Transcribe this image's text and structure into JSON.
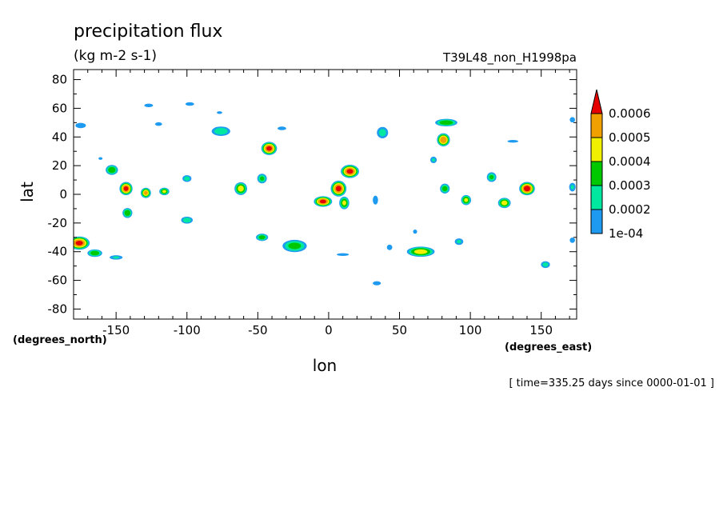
{
  "chart_data": {
    "type": "heatmap",
    "title": "precipitation flux",
    "units": "(kg m-2 s-1)",
    "run_label": "T39L48_non_H1998pa",
    "xlabel": "lon",
    "ylabel": "lat",
    "x_unit_label": "(degrees_east)",
    "y_unit_label": "(degrees_north)",
    "time_label": "[ time=335.25 days since 0000-01-01 ]",
    "xlim": [
      -180,
      175
    ],
    "ylim": [
      -87,
      87
    ],
    "x_ticks": [
      -150,
      -100,
      -50,
      0,
      50,
      100,
      150
    ],
    "x_tick_labels": [
      "-150",
      "-100",
      "-50",
      "0",
      "50",
      "100",
      "150"
    ],
    "y_ticks": [
      80,
      60,
      40,
      20,
      0,
      -20,
      -40,
      -60,
      -80
    ],
    "y_tick_labels": [
      "80",
      "60",
      "40",
      "20",
      "0",
      "-20",
      "-40",
      "-60",
      "-80"
    ],
    "levels": [
      0.0001,
      0.0002,
      0.0003,
      0.0004,
      0.0005,
      0.0006
    ],
    "colorbar": {
      "labels": [
        "1e-04",
        "0.0002",
        "0.0003",
        "0.0004",
        "0.0005",
        "0.0006"
      ],
      "colors": [
        "#1e9bf0",
        "#00e8a0",
        "#00c800",
        "#f0f000",
        "#f0a000",
        "#e60000"
      ]
    },
    "features": [
      {
        "lon": -175,
        "lat": 48,
        "peak": 0.00015,
        "rx": 6,
        "ry": 3
      },
      {
        "lon": -153,
        "lat": 17,
        "peak": 0.00038,
        "rx": 5,
        "ry": 4
      },
      {
        "lon": -161,
        "lat": 25,
        "peak": 0.00012,
        "rx": 3,
        "ry": 2
      },
      {
        "lon": -143,
        "lat": 4,
        "peak": 0.00062,
        "rx": 5,
        "ry": 5
      },
      {
        "lon": -142,
        "lat": -13,
        "peak": 0.00038,
        "rx": 4,
        "ry": 4
      },
      {
        "lon": -129,
        "lat": 1,
        "peak": 0.00052,
        "rx": 4,
        "ry": 4
      },
      {
        "lon": -116,
        "lat": 2,
        "peak": 0.00042,
        "rx": 4,
        "ry": 3
      },
      {
        "lon": -176,
        "lat": -34,
        "peak": 0.00062,
        "rx": 8,
        "ry": 5
      },
      {
        "lon": -165,
        "lat": -41,
        "peak": 0.00038,
        "rx": 6,
        "ry": 3
      },
      {
        "lon": -150,
        "lat": -44,
        "peak": 0.00022,
        "rx": 6,
        "ry": 2
      },
      {
        "lon": -120,
        "lat": 49,
        "peak": 0.00015,
        "rx": 4,
        "ry": 2
      },
      {
        "lon": -100,
        "lat": 11,
        "peak": 0.00025,
        "rx": 4,
        "ry": 3
      },
      {
        "lon": -100,
        "lat": -18,
        "peak": 0.00028,
        "rx": 5,
        "ry": 3
      },
      {
        "lon": -98,
        "lat": 63,
        "peak": 0.00015,
        "rx": 5,
        "ry": 2
      },
      {
        "lon": -76,
        "lat": 44,
        "peak": 0.00028,
        "rx": 8,
        "ry": 4
      },
      {
        "lon": -77,
        "lat": 57,
        "peak": 0.00012,
        "rx": 4,
        "ry": 2
      },
      {
        "lon": -62,
        "lat": 4,
        "peak": 0.00045,
        "rx": 5,
        "ry": 5
      },
      {
        "lon": -47,
        "lat": 11,
        "peak": 0.00032,
        "rx": 4,
        "ry": 4
      },
      {
        "lon": -42,
        "lat": 32,
        "peak": 0.00062,
        "rx": 6,
        "ry": 5
      },
      {
        "lon": -33,
        "lat": 46,
        "peak": 0.00015,
        "rx": 5,
        "ry": 2
      },
      {
        "lon": -47,
        "lat": -30,
        "peak": 0.00035,
        "rx": 5,
        "ry": 3
      },
      {
        "lon": -24,
        "lat": -36,
        "peak": 0.00035,
        "rx": 10,
        "ry": 5
      },
      {
        "lon": -4,
        "lat": -5,
        "peak": 0.00062,
        "rx": 7,
        "ry": 4
      },
      {
        "lon": 7,
        "lat": 4,
        "peak": 0.00062,
        "rx": 6,
        "ry": 6
      },
      {
        "lon": 15,
        "lat": 16,
        "peak": 0.00062,
        "rx": 7,
        "ry": 5
      },
      {
        "lon": 11,
        "lat": -6,
        "peak": 0.00042,
        "rx": 4,
        "ry": 5
      },
      {
        "lon": 10,
        "lat": -42,
        "peak": 0.00012,
        "rx": 9,
        "ry": 2
      },
      {
        "lon": 38,
        "lat": 43,
        "peak": 0.00025,
        "rx": 5,
        "ry": 5
      },
      {
        "lon": 33,
        "lat": -4,
        "peak": 0.00015,
        "rx": 3,
        "ry": 5
      },
      {
        "lon": 34,
        "lat": -62,
        "peak": 0.00012,
        "rx": 6,
        "ry": 3
      },
      {
        "lon": 43,
        "lat": -37,
        "peak": 0.00012,
        "rx": 4,
        "ry": 4
      },
      {
        "lon": 65,
        "lat": -40,
        "peak": 0.00045,
        "rx": 11,
        "ry": 4
      },
      {
        "lon": 61,
        "lat": -26,
        "peak": 0.00012,
        "rx": 3,
        "ry": 3
      },
      {
        "lon": 83,
        "lat": 50,
        "peak": 0.00038,
        "rx": 9,
        "ry": 3
      },
      {
        "lon": 81,
        "lat": 38,
        "peak": 0.00058,
        "rx": 5,
        "ry": 5
      },
      {
        "lon": 74,
        "lat": 24,
        "peak": 0.00022,
        "rx": 3,
        "ry": 3
      },
      {
        "lon": 82,
        "lat": 4,
        "peak": 0.00035,
        "rx": 4,
        "ry": 4
      },
      {
        "lon": 97,
        "lat": -4,
        "peak": 0.00042,
        "rx": 4,
        "ry": 4
      },
      {
        "lon": 115,
        "lat": 12,
        "peak": 0.00032,
        "rx": 4,
        "ry": 4
      },
      {
        "lon": 124,
        "lat": -6,
        "peak": 0.00045,
        "rx": 5,
        "ry": 4
      },
      {
        "lon": 140,
        "lat": 4,
        "peak": 0.00065,
        "rx": 6,
        "ry": 5
      },
      {
        "lon": 130,
        "lat": 37,
        "peak": 0.00012,
        "rx": 8,
        "ry": 2
      },
      {
        "lon": 153,
        "lat": -49,
        "peak": 0.00025,
        "rx": 4,
        "ry": 3
      },
      {
        "lon": 92,
        "lat": -33,
        "peak": 0.00022,
        "rx": 4,
        "ry": 3
      },
      {
        "lon": 172,
        "lat": 52,
        "peak": 0.00015,
        "rx": 3,
        "ry": 3
      },
      {
        "lon": 172,
        "lat": 5,
        "peak": 0.00022,
        "rx": 3,
        "ry": 4
      },
      {
        "lon": 172,
        "lat": -32,
        "peak": 0.00015,
        "rx": 3,
        "ry": 3
      },
      {
        "lon": -127,
        "lat": 62,
        "peak": 0.00015,
        "rx": 5,
        "ry": 2
      }
    ]
  }
}
